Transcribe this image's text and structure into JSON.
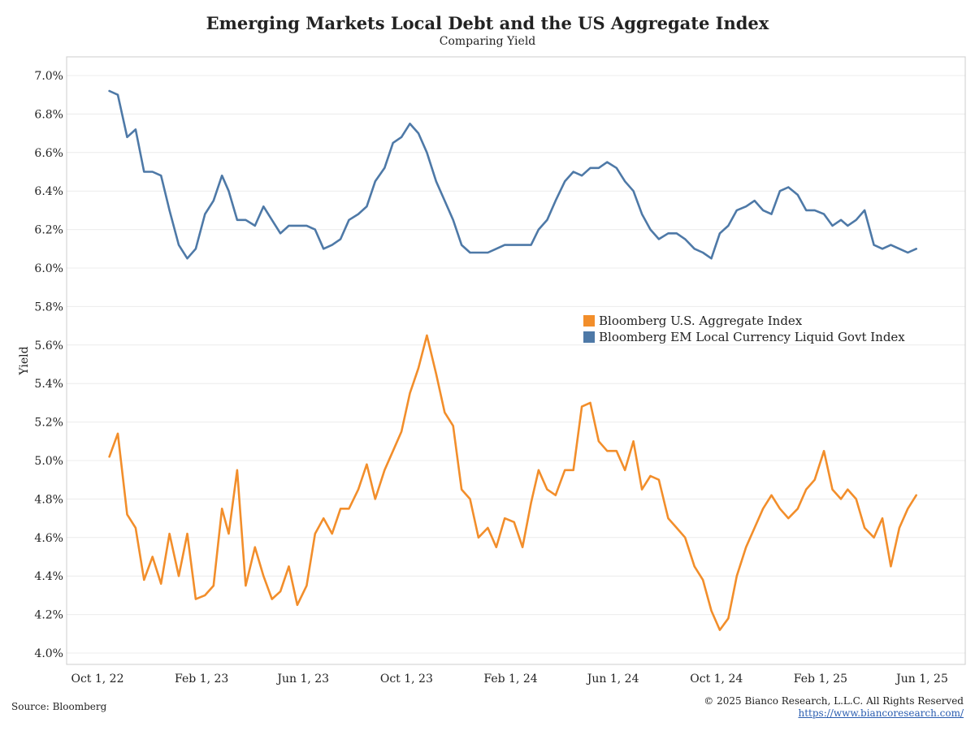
{
  "header": {
    "title": "Emerging Markets Local Debt and the US Aggregate Index",
    "subtitle": "Comparing Yield"
  },
  "footer": {
    "source": "Source: Bloomberg",
    "copyright": "© 2025 Bianco Research, L.L.C. All Rights Reserved",
    "url": "https://www.biancoresearch.com/"
  },
  "chart_data": {
    "type": "line",
    "title": "Emerging Markets Local Debt and the US Aggregate Index",
    "subtitle": "Comparing Yield",
    "xlabel": "",
    "ylabel": "Yield",
    "ylim": [
      4.0,
      7.0
    ],
    "xlim": [
      "2022-10-01",
      "2025-06-01"
    ],
    "yticks": [
      "4.0%",
      "4.2%",
      "4.4%",
      "4.6%",
      "4.8%",
      "5.0%",
      "5.2%",
      "5.4%",
      "5.6%",
      "5.8%",
      "6.0%",
      "6.2%",
      "6.4%",
      "6.6%",
      "6.8%",
      "7.0%"
    ],
    "ytick_values": [
      4.0,
      4.2,
      4.4,
      4.6,
      4.8,
      5.0,
      5.2,
      5.4,
      5.6,
      5.8,
      6.0,
      6.2,
      6.4,
      6.6,
      6.8,
      7.0
    ],
    "xticks": [
      "Oct 1, 22",
      "Feb 1, 23",
      "Jun 1, 23",
      "Oct 1, 23",
      "Feb 1, 24",
      "Jun 1, 24",
      "Oct 1, 24",
      "Feb 1, 25",
      "Jun 1, 25"
    ],
    "xtick_dates": [
      "2022-10-01",
      "2023-02-01",
      "2023-06-01",
      "2023-10-01",
      "2024-02-01",
      "2024-06-01",
      "2024-10-01",
      "2025-02-01",
      "2025-06-01"
    ],
    "grid": true,
    "legend_position": "center-right",
    "series": [
      {
        "name": "Bloomberg U.S. Aggregate Index",
        "color": "#f28e2b",
        "x": [
          "2022-10-15",
          "2022-10-25",
          "2022-11-05",
          "2022-11-15",
          "2022-11-25",
          "2022-12-05",
          "2022-12-15",
          "2022-12-25",
          "2023-01-05",
          "2023-01-15",
          "2023-01-25",
          "2023-02-05",
          "2023-02-15",
          "2023-02-25",
          "2023-03-05",
          "2023-03-15",
          "2023-03-25",
          "2023-04-05",
          "2023-04-15",
          "2023-04-25",
          "2023-05-05",
          "2023-05-15",
          "2023-05-25",
          "2023-06-05",
          "2023-06-15",
          "2023-06-25",
          "2023-07-05",
          "2023-07-15",
          "2023-07-25",
          "2023-08-05",
          "2023-08-15",
          "2023-08-25",
          "2023-09-05",
          "2023-09-15",
          "2023-09-25",
          "2023-10-05",
          "2023-10-15",
          "2023-10-25",
          "2023-11-05",
          "2023-11-15",
          "2023-11-25",
          "2023-12-05",
          "2023-12-15",
          "2023-12-25",
          "2024-01-05",
          "2024-01-15",
          "2024-01-25",
          "2024-02-05",
          "2024-02-15",
          "2024-02-25",
          "2024-03-05",
          "2024-03-15",
          "2024-03-25",
          "2024-04-05",
          "2024-04-15",
          "2024-04-25",
          "2024-05-05",
          "2024-05-15",
          "2024-05-25",
          "2024-06-05",
          "2024-06-15",
          "2024-06-25",
          "2024-07-05",
          "2024-07-15",
          "2024-07-25",
          "2024-08-05",
          "2024-08-15",
          "2024-08-25",
          "2024-09-05",
          "2024-09-15",
          "2024-09-25",
          "2024-10-05",
          "2024-10-15",
          "2024-10-25",
          "2024-11-05",
          "2024-11-15",
          "2024-11-25",
          "2024-12-05",
          "2024-12-15",
          "2024-12-25",
          "2025-01-05",
          "2025-01-15",
          "2025-01-25",
          "2025-02-05",
          "2025-02-15",
          "2025-02-25",
          "2025-03-05",
          "2025-03-15",
          "2025-03-25",
          "2025-04-05",
          "2025-04-15",
          "2025-04-25",
          "2025-05-05",
          "2025-05-15",
          "2025-05-25"
        ],
        "values": [
          5.02,
          5.14,
          4.72,
          4.65,
          4.38,
          4.5,
          4.36,
          4.62,
          4.4,
          4.62,
          4.28,
          4.3,
          4.35,
          4.75,
          4.62,
          4.95,
          4.35,
          4.55,
          4.4,
          4.28,
          4.32,
          4.45,
          4.25,
          4.35,
          4.62,
          4.7,
          4.62,
          4.75,
          4.75,
          4.85,
          4.98,
          4.8,
          4.95,
          5.05,
          5.15,
          5.35,
          5.48,
          5.65,
          5.45,
          5.25,
          5.18,
          4.85,
          4.8,
          4.6,
          4.65,
          4.55,
          4.7,
          4.68,
          4.55,
          4.78,
          4.95,
          4.85,
          4.82,
          4.95,
          4.95,
          5.28,
          5.3,
          5.1,
          5.05,
          5.05,
          4.95,
          5.1,
          4.85,
          4.92,
          4.9,
          4.7,
          4.65,
          4.6,
          4.45,
          4.38,
          4.22,
          4.12,
          4.18,
          4.4,
          4.55,
          4.65,
          4.75,
          4.82,
          4.75,
          4.7,
          4.75,
          4.85,
          4.9,
          5.05,
          4.85,
          4.8,
          4.85,
          4.8,
          4.65,
          4.6,
          4.7,
          4.45,
          4.65,
          4.75,
          4.82
        ]
      },
      {
        "name": "Bloomberg EM Local Currency Liquid Govt Index",
        "color": "#4e79a7",
        "x": [
          "2022-10-15",
          "2022-10-25",
          "2022-11-05",
          "2022-11-15",
          "2022-11-25",
          "2022-12-05",
          "2022-12-15",
          "2022-12-25",
          "2023-01-05",
          "2023-01-15",
          "2023-01-25",
          "2023-02-05",
          "2023-02-15",
          "2023-02-25",
          "2023-03-05",
          "2023-03-15",
          "2023-03-25",
          "2023-04-05",
          "2023-04-15",
          "2023-04-25",
          "2023-05-05",
          "2023-05-15",
          "2023-05-25",
          "2023-06-05",
          "2023-06-15",
          "2023-06-25",
          "2023-07-05",
          "2023-07-15",
          "2023-07-25",
          "2023-08-05",
          "2023-08-15",
          "2023-08-25",
          "2023-09-05",
          "2023-09-15",
          "2023-09-25",
          "2023-10-05",
          "2023-10-15",
          "2023-10-25",
          "2023-11-05",
          "2023-11-15",
          "2023-11-25",
          "2023-12-05",
          "2023-12-15",
          "2023-12-25",
          "2024-01-05",
          "2024-01-15",
          "2024-01-25",
          "2024-02-05",
          "2024-02-15",
          "2024-02-25",
          "2024-03-05",
          "2024-03-15",
          "2024-03-25",
          "2024-04-05",
          "2024-04-15",
          "2024-04-25",
          "2024-05-05",
          "2024-05-15",
          "2024-05-25",
          "2024-06-05",
          "2024-06-15",
          "2024-06-25",
          "2024-07-05",
          "2024-07-15",
          "2024-07-25",
          "2024-08-05",
          "2024-08-15",
          "2024-08-25",
          "2024-09-05",
          "2024-09-15",
          "2024-09-25",
          "2024-10-05",
          "2024-10-15",
          "2024-10-25",
          "2024-11-05",
          "2024-11-15",
          "2024-11-25",
          "2024-12-05",
          "2024-12-15",
          "2024-12-25",
          "2025-01-05",
          "2025-01-15",
          "2025-01-25",
          "2025-02-05",
          "2025-02-15",
          "2025-02-25",
          "2025-03-05",
          "2025-03-15",
          "2025-03-25",
          "2025-04-05",
          "2025-04-15",
          "2025-04-25",
          "2025-05-05",
          "2025-05-15",
          "2025-05-25"
        ],
        "values": [
          6.92,
          6.9,
          6.68,
          6.72,
          6.5,
          6.5,
          6.48,
          6.3,
          6.12,
          6.05,
          6.1,
          6.28,
          6.35,
          6.48,
          6.4,
          6.25,
          6.25,
          6.22,
          6.32,
          6.25,
          6.18,
          6.22,
          6.22,
          6.22,
          6.2,
          6.1,
          6.12,
          6.15,
          6.25,
          6.28,
          6.32,
          6.45,
          6.52,
          6.65,
          6.68,
          6.75,
          6.7,
          6.6,
          6.45,
          6.35,
          6.25,
          6.12,
          6.08,
          6.08,
          6.08,
          6.1,
          6.12,
          6.12,
          6.12,
          6.12,
          6.2,
          6.25,
          6.35,
          6.45,
          6.5,
          6.48,
          6.52,
          6.52,
          6.55,
          6.52,
          6.45,
          6.4,
          6.28,
          6.2,
          6.15,
          6.18,
          6.18,
          6.15,
          6.1,
          6.08,
          6.05,
          6.18,
          6.22,
          6.3,
          6.32,
          6.35,
          6.3,
          6.28,
          6.4,
          6.42,
          6.38,
          6.3,
          6.3,
          6.28,
          6.22,
          6.25,
          6.22,
          6.25,
          6.3,
          6.12,
          6.1,
          6.12,
          6.1,
          6.08,
          6.1
        ]
      }
    ]
  }
}
